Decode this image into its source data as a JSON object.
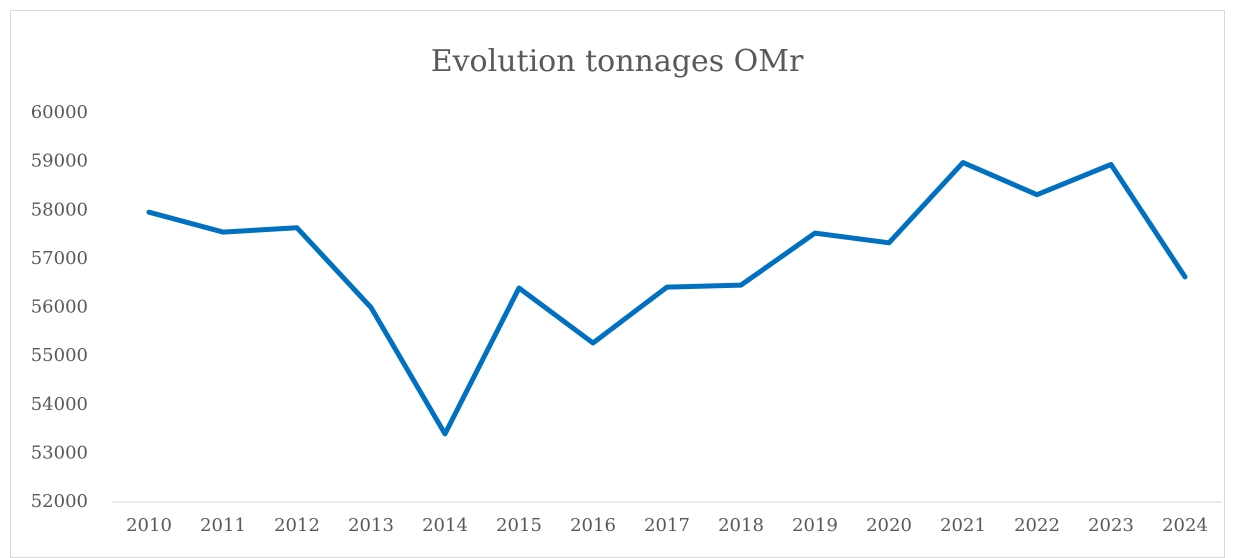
{
  "chart_data": {
    "type": "line",
    "title": "Evolution tonnages OMr",
    "categories": [
      "2010",
      "2011",
      "2012",
      "2013",
      "2014",
      "2015",
      "2016",
      "2017",
      "2018",
      "2019",
      "2020",
      "2021",
      "2022",
      "2023",
      "2024"
    ],
    "series": [
      {
        "name": "OMr",
        "color": "#0070c0",
        "values": [
          57960,
          57550,
          57640,
          56000,
          53400,
          56400,
          55270,
          56420,
          56460,
          57530,
          57330,
          58980,
          58320,
          58940,
          56630
        ]
      }
    ],
    "ylim": [
      52000,
      60000
    ],
    "yticks": [
      52000,
      53000,
      54000,
      55000,
      56000,
      57000,
      58000,
      59000,
      60000
    ],
    "grid": false
  }
}
